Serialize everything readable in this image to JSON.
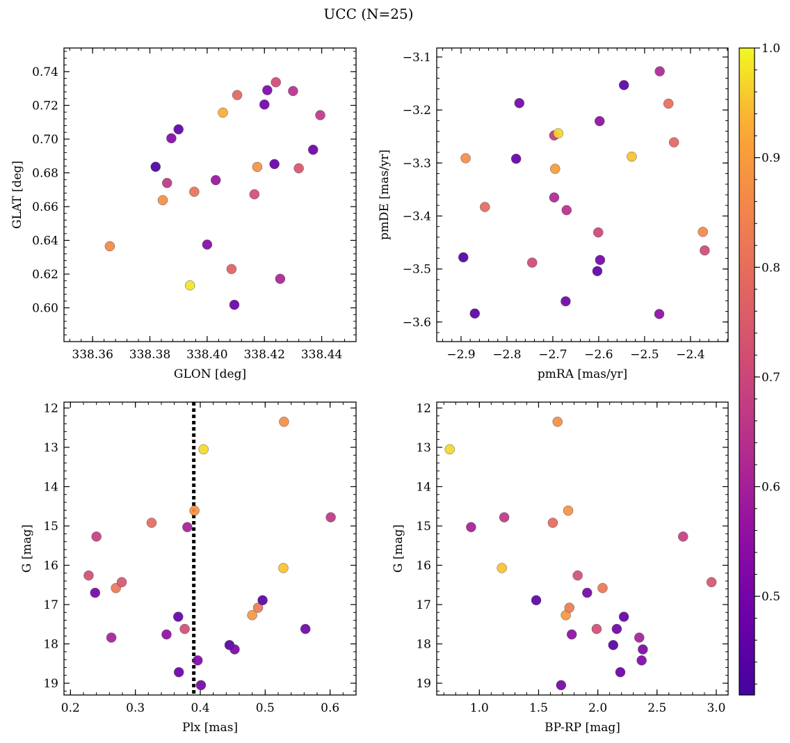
{
  "figure": {
    "title": "UCC (N=25)"
  },
  "colorbar": {
    "ticks": [
      0.5,
      0.6,
      0.7,
      0.8,
      0.9,
      1.0
    ],
    "tick_labels": [
      "0.5",
      "0.6",
      "0.7",
      "0.8",
      "0.9",
      "1.0"
    ],
    "range": [
      0.41,
      1.0
    ],
    "colormap": "plasma"
  },
  "chart_data": [
    {
      "type": "scatter",
      "xlabel": "GLON [deg]",
      "ylabel": "GLAT [deg]",
      "xlim": [
        338.35,
        338.452
      ],
      "ylim": [
        0.58,
        0.754
      ],
      "xticks": [
        338.36,
        338.38,
        338.4,
        338.42,
        338.44
      ],
      "xtick_labels": [
        "338.36",
        "338.38",
        "338.40",
        "338.42",
        "338.44"
      ],
      "yticks": [
        0.6,
        0.62,
        0.64,
        0.66,
        0.68,
        0.7,
        0.72,
        0.74
      ],
      "ytick_labels": [
        "0.60",
        "0.62",
        "0.64",
        "0.66",
        "0.68",
        "0.70",
        "0.72",
        "0.74"
      ],
      "points": [
        {
          "x": 338.366,
          "y": 0.6365,
          "c": 0.86
        },
        {
          "x": 338.382,
          "y": 0.6836,
          "c": 0.42
        },
        {
          "x": 338.3845,
          "y": 0.6638,
          "c": 0.87
        },
        {
          "x": 338.386,
          "y": 0.674,
          "c": 0.66
        },
        {
          "x": 338.3875,
          "y": 0.7005,
          "c": 0.53
        },
        {
          "x": 338.39,
          "y": 0.7058,
          "c": 0.46
        },
        {
          "x": 338.394,
          "y": 0.6133,
          "c": 0.98
        },
        {
          "x": 338.3955,
          "y": 0.6688,
          "c": 0.81
        },
        {
          "x": 338.4,
          "y": 0.6375,
          "c": 0.53
        },
        {
          "x": 338.403,
          "y": 0.6757,
          "c": 0.57
        },
        {
          "x": 338.4055,
          "y": 0.7157,
          "c": 0.93
        },
        {
          "x": 338.4085,
          "y": 0.623,
          "c": 0.77
        },
        {
          "x": 338.4095,
          "y": 0.6018,
          "c": 0.48
        },
        {
          "x": 338.4105,
          "y": 0.7261,
          "c": 0.78
        },
        {
          "x": 338.4165,
          "y": 0.6673,
          "c": 0.72
        },
        {
          "x": 338.4175,
          "y": 0.6835,
          "c": 0.88
        },
        {
          "x": 338.42,
          "y": 0.7205,
          "c": 0.49
        },
        {
          "x": 338.421,
          "y": 0.729,
          "c": 0.52
        },
        {
          "x": 338.4235,
          "y": 0.6852,
          "c": 0.47
        },
        {
          "x": 338.424,
          "y": 0.7337,
          "c": 0.71
        },
        {
          "x": 338.4255,
          "y": 0.6172,
          "c": 0.61
        },
        {
          "x": 338.43,
          "y": 0.7285,
          "c": 0.64
        },
        {
          "x": 338.432,
          "y": 0.6827,
          "c": 0.74
        },
        {
          "x": 338.437,
          "y": 0.6937,
          "c": 0.48
        },
        {
          "x": 338.4395,
          "y": 0.7142,
          "c": 0.66
        }
      ]
    },
    {
      "type": "scatter",
      "xlabel": "pmRA [mas/yr]",
      "ylabel": "pmDE [mas/yr]",
      "xlim": [
        -2.953,
        -2.318
      ],
      "ylim": [
        -3.637,
        -3.083
      ],
      "xticks": [
        -2.9,
        -2.8,
        -2.7,
        -2.6,
        -2.5,
        -2.4
      ],
      "xtick_labels": [
        "−2.9",
        "−2.8",
        "−2.7",
        "−2.6",
        "−2.5",
        "−2.4"
      ],
      "yticks": [
        -3.6,
        -3.5,
        -3.4,
        -3.3,
        -3.2,
        -3.1
      ],
      "ytick_labels": [
        "−3.6",
        "−3.5",
        "−3.4",
        "−3.3",
        "−3.2",
        "−3.1"
      ],
      "points": [
        {
          "x": -2.895,
          "y": -3.478,
          "c": 0.43
        },
        {
          "x": -2.89,
          "y": -3.291,
          "c": 0.87
        },
        {
          "x": -2.87,
          "y": -3.584,
          "c": 0.45
        },
        {
          "x": -2.848,
          "y": -3.383,
          "c": 0.79
        },
        {
          "x": -2.78,
          "y": -3.292,
          "c": 0.47
        },
        {
          "x": -2.773,
          "y": -3.187,
          "c": 0.5
        },
        {
          "x": -2.745,
          "y": -3.488,
          "c": 0.71
        },
        {
          "x": -2.697,
          "y": -3.365,
          "c": 0.62
        },
        {
          "x": -2.697,
          "y": -3.248,
          "c": 0.67
        },
        {
          "x": -2.695,
          "y": -3.311,
          "c": 0.9
        },
        {
          "x": -2.688,
          "y": -3.244,
          "c": 0.97
        },
        {
          "x": -2.672,
          "y": -3.561,
          "c": 0.49
        },
        {
          "x": -2.67,
          "y": -3.389,
          "c": 0.64
        },
        {
          "x": -2.603,
          "y": -3.504,
          "c": 0.46
        },
        {
          "x": -2.601,
          "y": -3.431,
          "c": 0.7
        },
        {
          "x": -2.598,
          "y": -3.221,
          "c": 0.55
        },
        {
          "x": -2.597,
          "y": -3.483,
          "c": 0.5
        },
        {
          "x": -2.545,
          "y": -3.153,
          "c": 0.45
        },
        {
          "x": -2.528,
          "y": -3.288,
          "c": 0.95
        },
        {
          "x": -2.468,
          "y": -3.585,
          "c": 0.55
        },
        {
          "x": -2.467,
          "y": -3.127,
          "c": 0.62
        },
        {
          "x": -2.448,
          "y": -3.188,
          "c": 0.8
        },
        {
          "x": -2.436,
          "y": -3.261,
          "c": 0.78
        },
        {
          "x": -2.373,
          "y": -3.43,
          "c": 0.86
        },
        {
          "x": -2.369,
          "y": -3.465,
          "c": 0.71
        }
      ]
    },
    {
      "type": "scatter",
      "xlabel": "Plx [mas]",
      "ylabel": "G [mag]",
      "xlim": [
        0.19,
        0.64
      ],
      "ylim": [
        19.3,
        11.85
      ],
      "xticks": [
        0.2,
        0.3,
        0.4,
        0.5,
        0.6
      ],
      "xtick_labels": [
        "0.2",
        "0.3",
        "0.4",
        "0.5",
        "0.6"
      ],
      "yticks": [
        12,
        13,
        14,
        15,
        16,
        17,
        18,
        19
      ],
      "ytick_labels": [
        "12",
        "13",
        "14",
        "15",
        "16",
        "17",
        "18",
        "19"
      ],
      "vline": 0.39,
      "points": [
        {
          "x": 0.228,
          "y": 16.26,
          "c": 0.72
        },
        {
          "x": 0.238,
          "y": 16.7,
          "c": 0.5
        },
        {
          "x": 0.24,
          "y": 15.27,
          "c": 0.68
        },
        {
          "x": 0.263,
          "y": 17.84,
          "c": 0.6
        },
        {
          "x": 0.27,
          "y": 16.58,
          "c": 0.82
        },
        {
          "x": 0.279,
          "y": 16.43,
          "c": 0.74
        },
        {
          "x": 0.325,
          "y": 14.92,
          "c": 0.79
        },
        {
          "x": 0.348,
          "y": 17.76,
          "c": 0.55
        },
        {
          "x": 0.366,
          "y": 17.31,
          "c": 0.47
        },
        {
          "x": 0.367,
          "y": 18.72,
          "c": 0.48
        },
        {
          "x": 0.376,
          "y": 17.62,
          "c": 0.72
        },
        {
          "x": 0.38,
          "y": 15.03,
          "c": 0.6
        },
        {
          "x": 0.391,
          "y": 14.61,
          "c": 0.88
        },
        {
          "x": 0.396,
          "y": 18.42,
          "c": 0.52
        },
        {
          "x": 0.401,
          "y": 19.05,
          "c": 0.5
        },
        {
          "x": 0.405,
          "y": 13.05,
          "c": 0.97
        },
        {
          "x": 0.445,
          "y": 18.03,
          "c": 0.44
        },
        {
          "x": 0.453,
          "y": 18.14,
          "c": 0.51
        },
        {
          "x": 0.48,
          "y": 17.27,
          "c": 0.89
        },
        {
          "x": 0.489,
          "y": 17.08,
          "c": 0.83
        },
        {
          "x": 0.496,
          "y": 16.89,
          "c": 0.45
        },
        {
          "x": 0.528,
          "y": 16.07,
          "c": 0.95
        },
        {
          "x": 0.529,
          "y": 12.35,
          "c": 0.87
        },
        {
          "x": 0.562,
          "y": 17.62,
          "c": 0.49
        },
        {
          "x": 0.601,
          "y": 14.78,
          "c": 0.66
        }
      ]
    },
    {
      "type": "scatter",
      "xlabel": "BP-RP [mag]",
      "ylabel": "G [mag]",
      "xlim": [
        0.64,
        3.1
      ],
      "ylim": [
        19.3,
        11.85
      ],
      "xticks": [
        1.0,
        1.5,
        2.0,
        2.5,
        3.0
      ],
      "xtick_labels": [
        "1.0",
        "1.5",
        "2.0",
        "2.5",
        "3.0"
      ],
      "yticks": [
        12,
        13,
        14,
        15,
        16,
        17,
        18,
        19
      ],
      "ytick_labels": [
        "12",
        "13",
        "14",
        "15",
        "16",
        "17",
        "18",
        "19"
      ],
      "points": [
        {
          "x": 0.75,
          "y": 13.05,
          "c": 0.97
        },
        {
          "x": 0.93,
          "y": 15.03,
          "c": 0.6
        },
        {
          "x": 1.19,
          "y": 16.07,
          "c": 0.95
        },
        {
          "x": 1.21,
          "y": 14.78,
          "c": 0.66
        },
        {
          "x": 1.48,
          "y": 16.89,
          "c": 0.45
        },
        {
          "x": 1.62,
          "y": 14.92,
          "c": 0.79
        },
        {
          "x": 1.66,
          "y": 12.35,
          "c": 0.87
        },
        {
          "x": 1.69,
          "y": 19.05,
          "c": 0.5
        },
        {
          "x": 1.73,
          "y": 17.27,
          "c": 0.89
        },
        {
          "x": 1.75,
          "y": 14.61,
          "c": 0.88
        },
        {
          "x": 1.76,
          "y": 17.08,
          "c": 0.83
        },
        {
          "x": 1.78,
          "y": 17.76,
          "c": 0.55
        },
        {
          "x": 1.83,
          "y": 16.26,
          "c": 0.72
        },
        {
          "x": 1.91,
          "y": 16.7,
          "c": 0.5
        },
        {
          "x": 1.99,
          "y": 17.62,
          "c": 0.72
        },
        {
          "x": 2.04,
          "y": 16.58,
          "c": 0.82
        },
        {
          "x": 2.13,
          "y": 18.03,
          "c": 0.44
        },
        {
          "x": 2.16,
          "y": 17.62,
          "c": 0.49
        },
        {
          "x": 2.19,
          "y": 18.72,
          "c": 0.48
        },
        {
          "x": 2.22,
          "y": 17.31,
          "c": 0.47
        },
        {
          "x": 2.35,
          "y": 17.84,
          "c": 0.6
        },
        {
          "x": 2.37,
          "y": 18.42,
          "c": 0.52
        },
        {
          "x": 2.72,
          "y": 15.27,
          "c": 0.68
        },
        {
          "x": 2.96,
          "y": 16.43,
          "c": 0.74
        },
        {
          "x": 2.38,
          "y": 18.14,
          "c": 0.51
        }
      ]
    }
  ]
}
